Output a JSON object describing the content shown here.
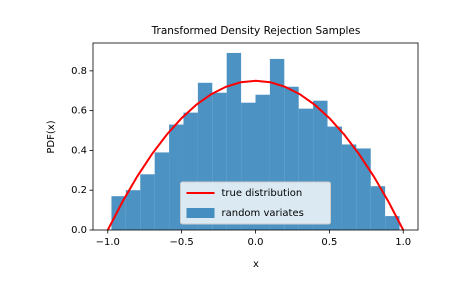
{
  "chart_data": {
    "type": "histogram",
    "title": "Transformed Density Rejection Samples",
    "xlabel": "x",
    "ylabel": "PDF(x)",
    "xlim": [
      -1.1,
      1.1
    ],
    "ylim": [
      0,
      0.94
    ],
    "xticks": [
      {
        "value": -1,
        "label": "−1.0"
      },
      {
        "value": -0.5,
        "label": "−0.5"
      },
      {
        "value": 0,
        "label": "0.0"
      },
      0.5,
      {
        "value": 1,
        "label": "1.0"
      }
    ],
    "yticks": [
      {
        "value": 0,
        "label": "0.0"
      },
      0.2,
      0.4,
      0.6,
      0.8
    ],
    "legend": "lower center",
    "series": [
      {
        "name": "true distribution",
        "type": "line",
        "color": "#ff0000",
        "x": [
          -1,
          -0.9,
          -0.8,
          -0.7,
          -0.6,
          -0.5,
          -0.4,
          -0.3,
          -0.2,
          -0.1,
          0,
          0.1,
          0.2,
          0.3,
          0.4,
          0.5,
          0.6,
          0.7,
          0.8,
          0.9,
          1
        ],
        "values": [
          0,
          0.1425,
          0.27,
          0.3825,
          0.48,
          0.5625,
          0.63,
          0.6825,
          0.72,
          0.7425,
          0.75,
          0.7425,
          0.72,
          0.6825,
          0.63,
          0.5625,
          0.48,
          0.3825,
          0.27,
          0.1425,
          0
        ]
      },
      {
        "name": "random variates",
        "type": "histogram",
        "color": "#1f77b4",
        "opacity": 0.8,
        "bins": [
          -0.975,
          -0.8775,
          -0.78,
          -0.6825,
          -0.585,
          -0.4875,
          -0.39,
          -0.2925,
          -0.195,
          -0.0975,
          0,
          0.0975,
          0.195,
          0.2925,
          0.39,
          0.4875,
          0.585,
          0.6825,
          0.78,
          0.8775,
          0.975
        ],
        "values": [
          0.17,
          0.2,
          0.28,
          0.39,
          0.53,
          0.59,
          0.74,
          0.69,
          0.89,
          0.64,
          0.68,
          0.86,
          0.72,
          0.61,
          0.65,
          0.52,
          0.43,
          0.41,
          0.22,
          0.07
        ]
      }
    ]
  }
}
